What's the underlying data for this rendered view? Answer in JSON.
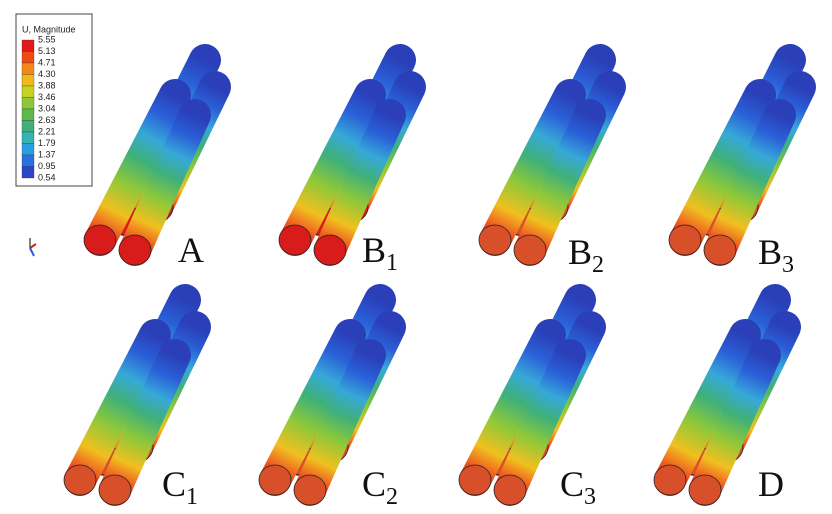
{
  "legend": {
    "title": "U, Magnitude",
    "values": [
      "5.55",
      "5.13",
      "4.71",
      "4.30",
      "3.88",
      "3.46",
      "3.04",
      "2.63",
      "2.21",
      "1.79",
      "1.37",
      "0.95",
      "0.54"
    ]
  },
  "panels": [
    {
      "letter": "A"
    },
    {
      "letter": "B",
      "sub": "1"
    },
    {
      "letter": "B",
      "sub": "2"
    },
    {
      "letter": "B",
      "sub": "3"
    },
    {
      "letter": "C",
      "sub": "1"
    },
    {
      "letter": "C",
      "sub": "2"
    },
    {
      "letter": "C",
      "sub": "3"
    },
    {
      "letter": "D"
    }
  ]
}
